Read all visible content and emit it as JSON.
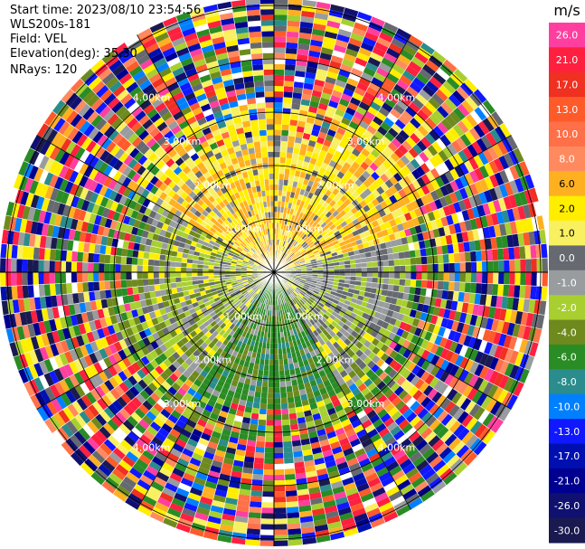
{
  "header": {
    "start_time": "Start time: 2023/08/10 23:54:56",
    "instrument": "WLS200s-181",
    "field": "Field: VEL",
    "elevation": "Elevation(deg): 35.30",
    "nrays": "NRays: 120"
  },
  "chart_data": {
    "type": "heatmap",
    "subtype": "polar PPI radial velocity",
    "unit": "m/s",
    "ring_labels": [
      "1.00km",
      "2.00km",
      "3.00km",
      "4.00km"
    ],
    "colorbar_ticks": [
      "26.0",
      "21.0",
      "17.0",
      "13.0",
      "10.0",
      "8.0",
      "6.0",
      "2.0",
      "1.0",
      "0.0",
      "-1.0",
      "-2.0",
      "-4.0",
      "-6.0",
      "-8.0",
      "-10.0",
      "-13.0",
      "-17.0",
      "-21.0",
      "-26.0",
      "-30.0"
    ],
    "colorbar_colors": [
      "#ff3fa0",
      "#ff1f3f",
      "#f03020",
      "#ff5a2a",
      "#ff7048",
      "#ff8a60",
      "#ffb020",
      "#ffee00",
      "#f8f060",
      "#666a70",
      "#999c9e",
      "#a8cf30",
      "#6e8a1e",
      "#2a8c24",
      "#2a8c8c",
      "#0080ff",
      "#1018ff",
      "#0010b0",
      "#000090",
      "#101070",
      "#1a1a50"
    ],
    "grid": true
  }
}
